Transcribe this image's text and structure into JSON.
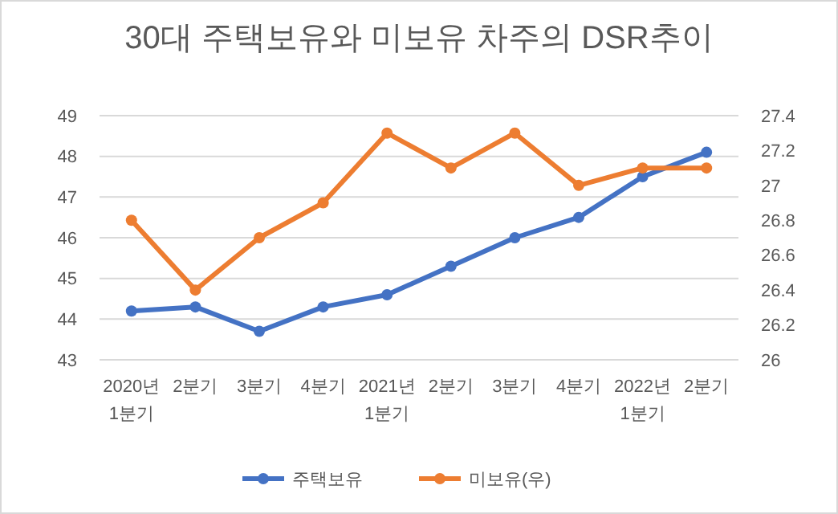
{
  "chart_data": {
    "type": "line",
    "title": "30대 주택보유와 미보유 차주의 DSR추이",
    "categories": [
      "2020년\n1분기",
      "2분기",
      "3분기",
      "4분기",
      "2021년\n1분기",
      "2분기",
      "3분기",
      "4분기",
      "2022년\n1분기",
      "2분기"
    ],
    "series": [
      {
        "name": "주택보유",
        "color": "#4472c4",
        "values": [
          44.2,
          44.3,
          43.7,
          44.3,
          44.6,
          45.3,
          46.0,
          46.5,
          47.5,
          48.1
        ]
      },
      {
        "name": "미보유(우)",
        "color": "#ed7d31",
        "axis": "y2",
        "values": [
          26.8,
          26.4,
          26.7,
          26.9,
          27.3,
          27.1,
          27.3,
          27.0,
          27.1,
          27.1
        ]
      }
    ],
    "ylim": [
      43,
      49
    ],
    "yticks": [
      43,
      44,
      45,
      46,
      47,
      48,
      49
    ],
    "y2lim": [
      26,
      27.4
    ],
    "y2ticks": [
      26,
      26.2,
      26.4,
      26.6,
      26.8,
      27,
      27.2,
      27.4
    ],
    "grid": "y",
    "legend": "bottom",
    "marker": "circle",
    "line_style": "solid"
  }
}
